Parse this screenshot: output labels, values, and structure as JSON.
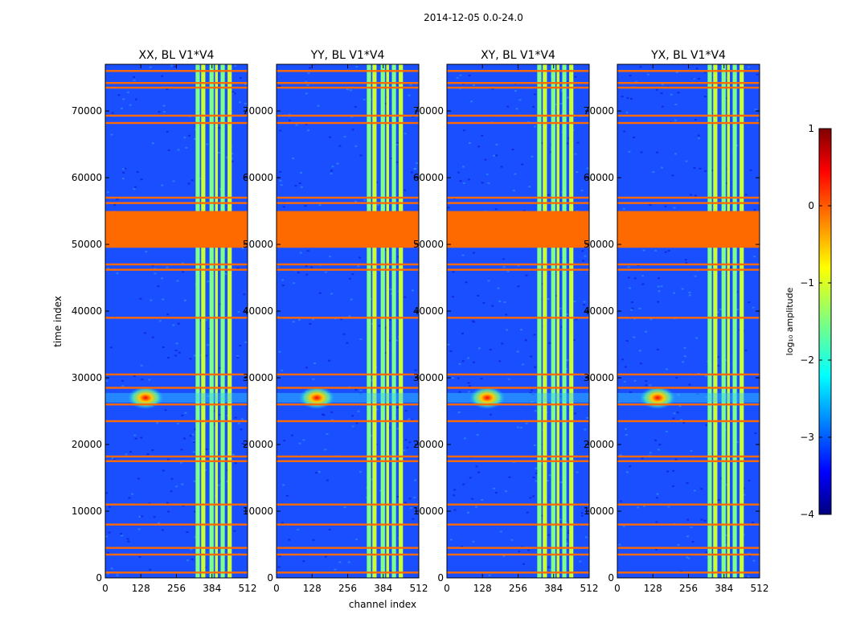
{
  "chart_data": {
    "type": "heatmap",
    "suptitle": "2014-12-05 0.0-24.0",
    "xlabel": "channel index",
    "ylabel": "time index",
    "xlim": [
      0,
      512
    ],
    "ylim": [
      0,
      77000
    ],
    "xticks": [
      0,
      128,
      256,
      384,
      512
    ],
    "yticks": [
      0,
      10000,
      20000,
      30000,
      40000,
      50000,
      60000,
      70000
    ],
    "panels": [
      {
        "title": "XX, BL V1*V4"
      },
      {
        "title": "YY, BL V1*V4"
      },
      {
        "title": "XY, BL V1*V4"
      },
      {
        "title": "YX, BL V1*V4"
      }
    ],
    "flagged_time_ranges": [
      [
        49500,
        55000
      ]
    ],
    "flagged_time_rows": [
      800,
      3500,
      4500,
      8000,
      11000,
      17500,
      18200,
      23500,
      26000,
      28500,
      30500,
      39000,
      46200,
      47000,
      56200,
      57000,
      68200,
      69300,
      73500,
      74200,
      76000
    ],
    "bright_channel_columns": [
      [
        325,
        340
      ],
      [
        345,
        360
      ],
      [
        375,
        390
      ],
      [
        395,
        405
      ],
      [
        415,
        430
      ],
      [
        440,
        455
      ]
    ],
    "hotspot": {
      "channel": 145,
      "time": 27000
    },
    "colorbar": {
      "label": "log₁₀ amplitude",
      "range": [
        -4,
        1
      ],
      "ticks": [
        "1",
        "0",
        "−1",
        "−2",
        "−3",
        "−4"
      ],
      "colormap": "jet",
      "flag_color": "#ff6a00"
    }
  }
}
